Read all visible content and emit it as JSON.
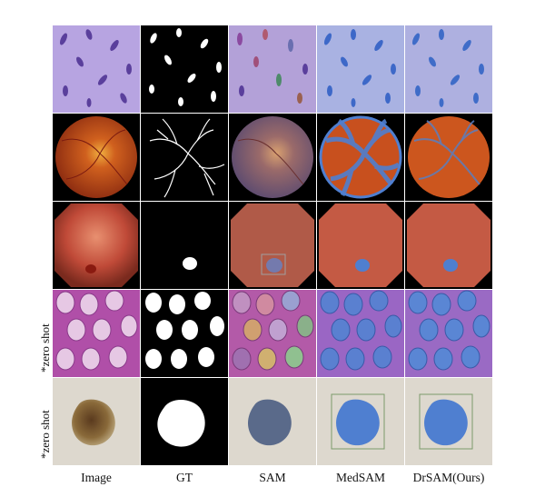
{
  "figure": {
    "columns": [
      "Image",
      "GT",
      "SAM",
      "MedSAM",
      "DrSAM(Ours)"
    ],
    "row_labels": {
      "row4": "*zero shot",
      "row5": "*zero shot"
    },
    "rows": [
      {
        "id": "cells-purple"
      },
      {
        "id": "retina-fundus"
      },
      {
        "id": "endoscopy-polyp"
      },
      {
        "id": "histology-glands"
      },
      {
        "id": "skin-lesion"
      }
    ],
    "colors": {
      "purple_bg": "#b3a1e0",
      "nucleus": "#5b3e9e",
      "fundus": "#c8501e",
      "mask_blue": "#4f7fd0",
      "gt_white": "#ffffff",
      "gt_black": "#000000",
      "skin": "#d8d4cc",
      "box_green": "#7a9a6a"
    }
  }
}
